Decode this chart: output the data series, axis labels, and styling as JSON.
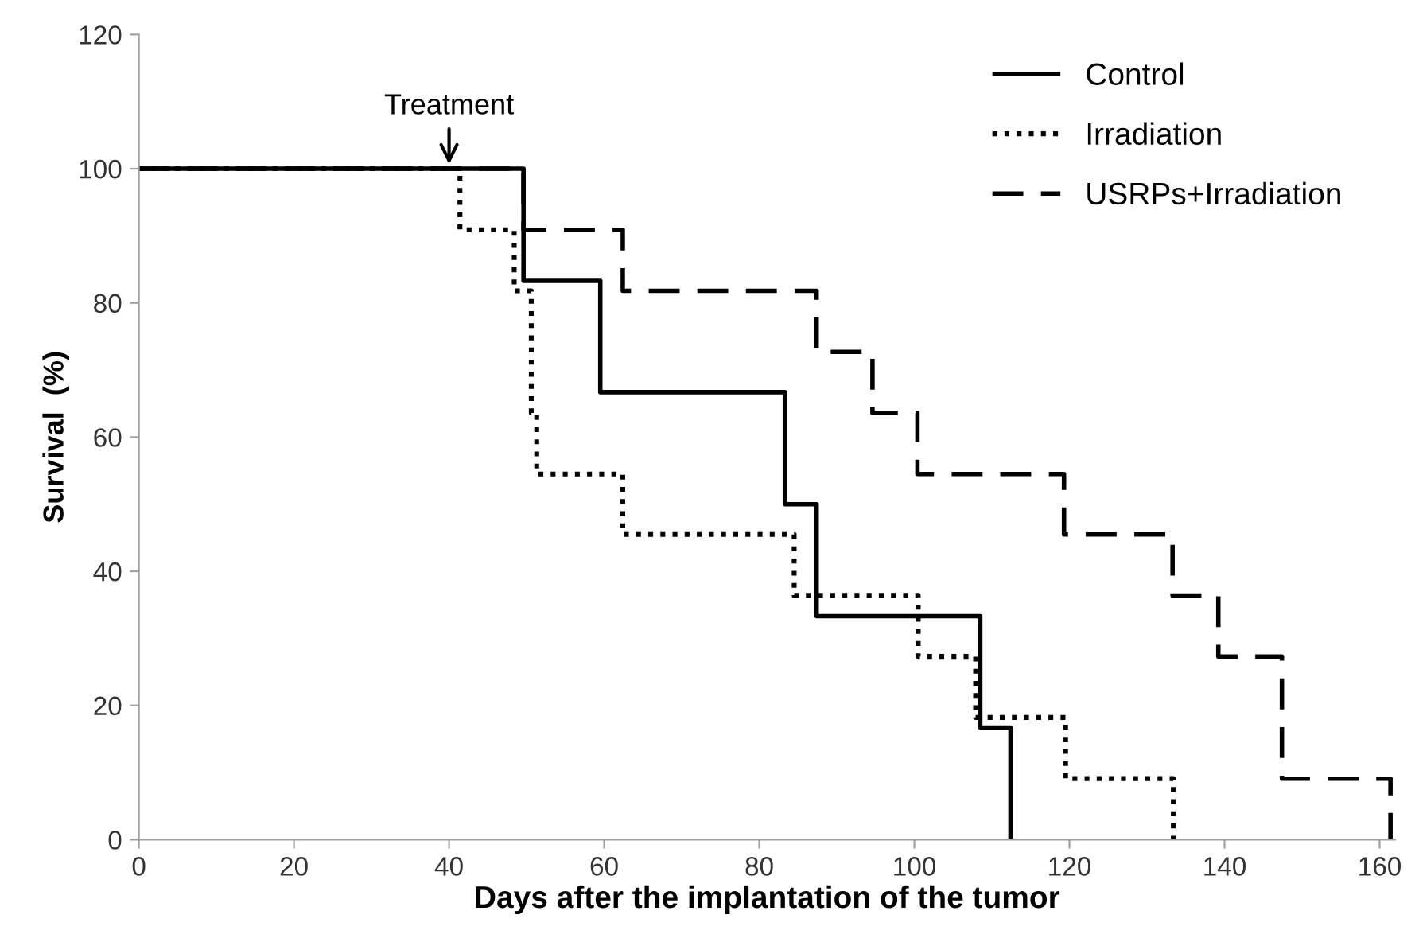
{
  "chart_data": {
    "type": "step",
    "xlabel": "Days after the implantation of the tumor",
    "ylabel": "Survival  (%)",
    "xlim": [
      0,
      162
    ],
    "xticks": [
      0,
      20,
      40,
      60,
      80,
      100,
      120,
      140,
      160
    ],
    "ylim": [
      0,
      120
    ],
    "yticks": [
      0,
      20,
      40,
      60,
      80,
      100,
      120
    ],
    "grid": false,
    "legend": "top right",
    "marker": "none",
    "annotations": [
      {
        "text": "Treatment",
        "x": 40,
        "y": 100
      }
    ],
    "series": [
      {
        "name": "Control",
        "color": "#000000",
        "line_style": "solid",
        "x": [
          0,
          49.6,
          59.5,
          83.3,
          87.4,
          108.5,
          112.4
        ],
        "values": [
          100,
          83.3,
          66.7,
          50,
          33.3,
          16.7,
          0
        ]
      },
      {
        "name": "Irradiation",
        "color": "#000000",
        "line_style": "dotted",
        "x": [
          0,
          41.4,
          48.4,
          50.6,
          51.3,
          62.4,
          84.5,
          100.5,
          107.9,
          119.5,
          133.4
        ],
        "values": [
          100,
          90.9,
          81.8,
          63.6,
          54.5,
          45.5,
          36.4,
          27.3,
          18.2,
          9.1,
          0
        ]
      },
      {
        "name": "USRPs+Irradiation",
        "color": "#000000",
        "line_style": "dashed",
        "x": [
          0,
          49.6,
          62.4,
          87.4,
          94.6,
          100.4,
          119.3,
          133.3,
          139.2,
          147.4,
          161.4
        ],
        "values": [
          100,
          90.9,
          81.8,
          72.7,
          63.6,
          54.5,
          45.5,
          36.4,
          27.3,
          9.1,
          0
        ]
      }
    ]
  }
}
